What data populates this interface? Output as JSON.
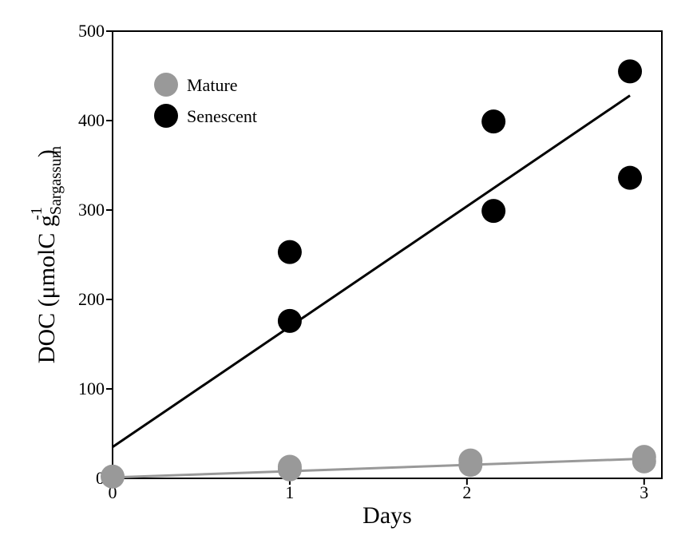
{
  "chart_data": {
    "type": "scatter",
    "xlabel": "Days",
    "ylabel": {
      "main": "DOC (",
      "unit": "μmolC g",
      "subscript": "Sargassum",
      "superscript": "-1",
      "close": ")"
    },
    "xlim": [
      0,
      3.1
    ],
    "ylim": [
      0,
      500
    ],
    "x_ticks": [
      0,
      1,
      2,
      3
    ],
    "y_ticks": [
      0,
      100,
      200,
      300,
      400,
      500
    ],
    "grid": false,
    "legend_position": "top-left",
    "series": [
      {
        "name": "Mature",
        "color": "#999999",
        "points": [
          [
            0,
            2
          ],
          [
            1,
            10
          ],
          [
            1,
            13
          ],
          [
            2.02,
            15
          ],
          [
            2.02,
            20
          ],
          [
            3.0,
            19
          ],
          [
            3.0,
            24
          ]
        ],
        "fit": [
          [
            0,
            1
          ],
          [
            3.0,
            22
          ]
        ]
      },
      {
        "name": "Senescent",
        "color": "#000000",
        "points": [
          [
            1,
            176
          ],
          [
            1,
            253
          ],
          [
            2.15,
            299
          ],
          [
            2.15,
            399
          ],
          [
            2.92,
            336
          ],
          [
            2.92,
            455
          ]
        ],
        "fit": [
          [
            0,
            35
          ],
          [
            2.92,
            428
          ]
        ]
      }
    ]
  }
}
